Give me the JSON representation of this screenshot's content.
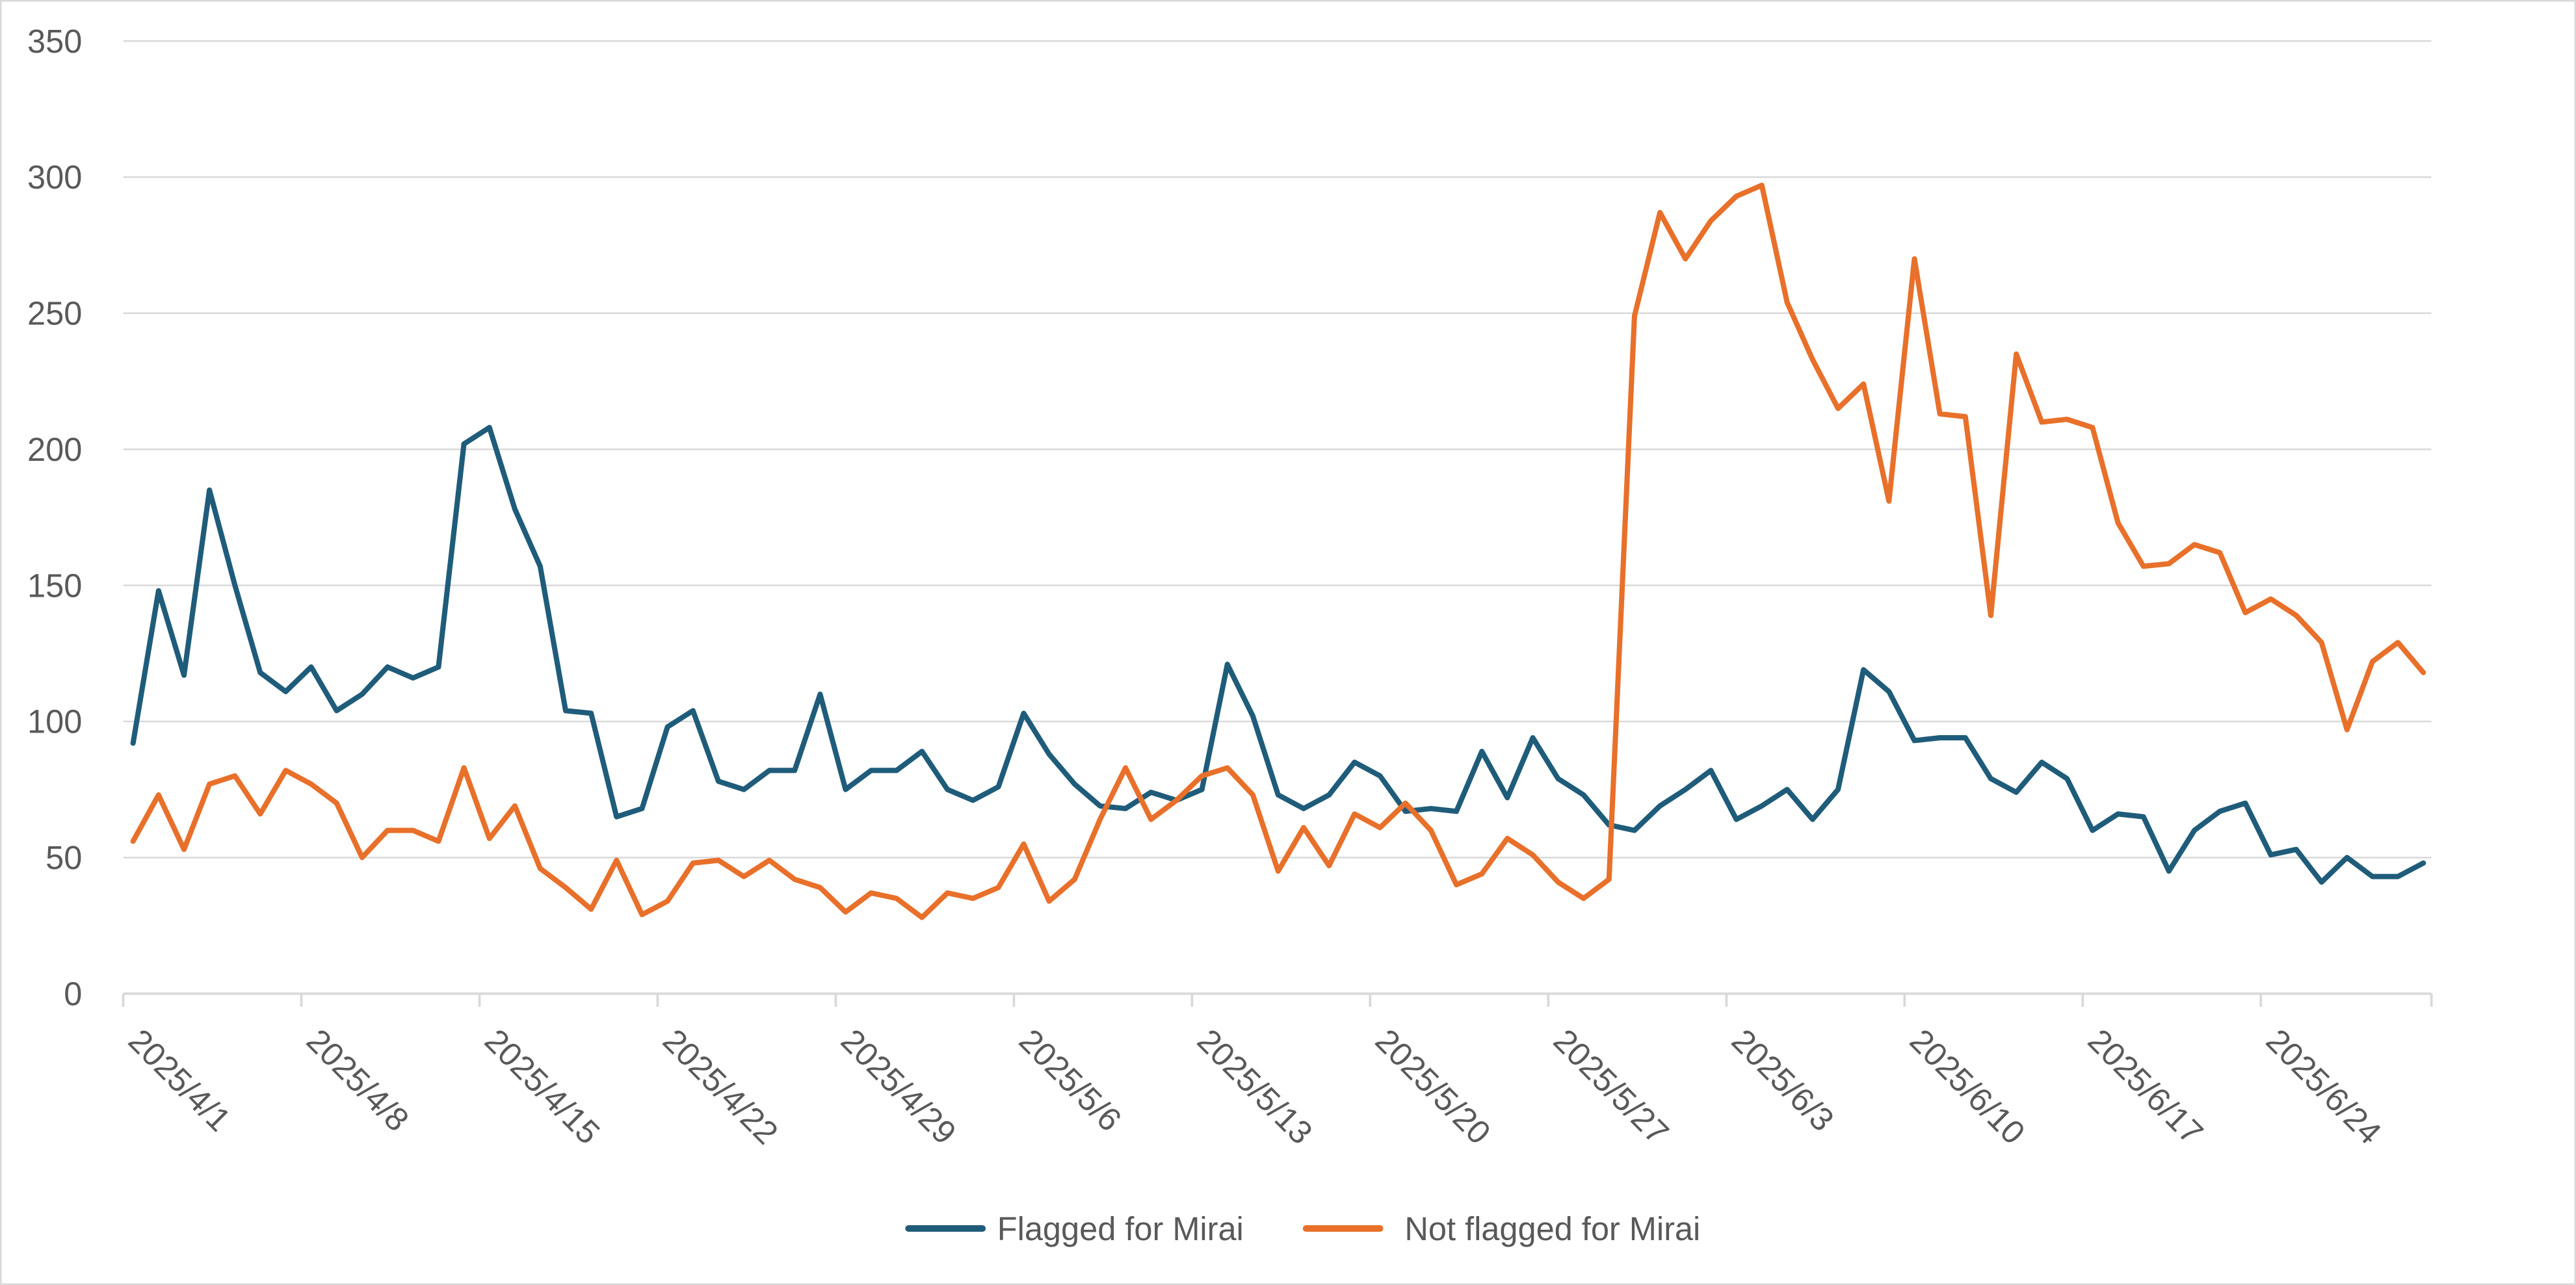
{
  "chart_data": {
    "type": "line",
    "title": "",
    "xlabel": "",
    "ylabel": "",
    "ylim": [
      0,
      350
    ],
    "yticks": [
      "0",
      "50",
      "100",
      "150",
      "200",
      "250",
      "300",
      "350"
    ],
    "grid": true,
    "legend_position": "bottom",
    "start_date": "2025/4/1",
    "x_tick_labels": [
      "2025/4/1",
      "2025/4/8",
      "2025/4/15",
      "2025/4/22",
      "2025/4/29",
      "2025/5/6",
      "2025/5/13",
      "2025/5/20",
      "2025/5/27",
      "2025/6/3",
      "2025/6/10",
      "2025/6/17",
      "2025/6/24"
    ],
    "series": [
      {
        "name": "Flagged for Mirai",
        "color": "#1F5C7A",
        "values": [
          92,
          148,
          117,
          185,
          150,
          118,
          111,
          120,
          104,
          110,
          120,
          116,
          120,
          202,
          208,
          178,
          157,
          104,
          103,
          65,
          68,
          98,
          104,
          78,
          75,
          82,
          82,
          110,
          75,
          82,
          82,
          89,
          75,
          71,
          76,
          103,
          88,
          77,
          69,
          68,
          74,
          71,
          75,
          121,
          102,
          73,
          68,
          73,
          85,
          80,
          67,
          68,
          67,
          89,
          72,
          94,
          79,
          73,
          62,
          60,
          69,
          75,
          82,
          64,
          69,
          75,
          64,
          75,
          119,
          111,
          93,
          94,
          94,
          79,
          74,
          85,
          79,
          60,
          66,
          65,
          45,
          60,
          67,
          70,
          51,
          53,
          41,
          50,
          43,
          43,
          48
        ]
      },
      {
        "name": "Not flagged for Mirai",
        "color": "#E8702A",
        "values": [
          56,
          73,
          53,
          77,
          80,
          66,
          82,
          77,
          70,
          50,
          60,
          60,
          56,
          83,
          57,
          69,
          46,
          39,
          31,
          49,
          29,
          34,
          48,
          49,
          43,
          49,
          42,
          39,
          30,
          37,
          35,
          28,
          37,
          35,
          39,
          55,
          34,
          42,
          64,
          83,
          64,
          71,
          80,
          83,
          73,
          45,
          61,
          47,
          66,
          61,
          70,
          60,
          40,
          44,
          57,
          51,
          41,
          35,
          42,
          249,
          287,
          270,
          284,
          293,
          297,
          254,
          233,
          215,
          224,
          181,
          270,
          213,
          212,
          139,
          235,
          210,
          211,
          208,
          173,
          157,
          158,
          165,
          162,
          140,
          145,
          139,
          129,
          97,
          122,
          129,
          118
        ]
      }
    ]
  }
}
